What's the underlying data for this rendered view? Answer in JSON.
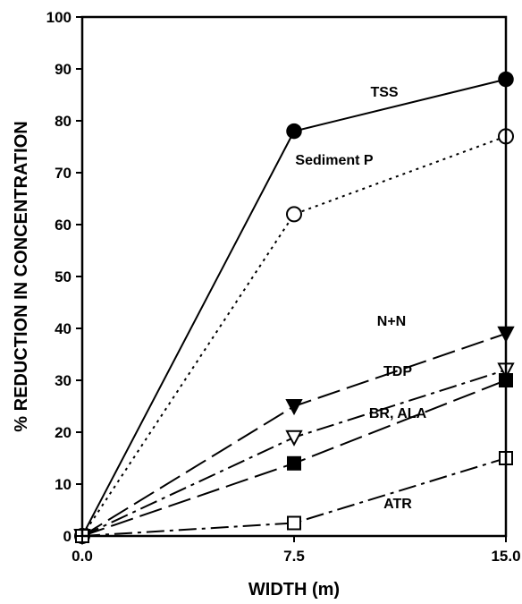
{
  "chart_data": {
    "type": "line",
    "xlabel": "WIDTH (m)",
    "ylabel": "% REDUCTION IN CONCENTRATION",
    "x": [
      0.0,
      7.5,
      15.0
    ],
    "xticks": [
      "0.0",
      "7.5",
      "15.0"
    ],
    "yticks": [
      "0",
      "10",
      "20",
      "30",
      "40",
      "50",
      "60",
      "70",
      "80",
      "90",
      "100"
    ],
    "xlim": [
      0,
      15
    ],
    "ylim": [
      0,
      100
    ],
    "grid": false,
    "series": [
      {
        "name": "TSS",
        "values": [
          0,
          78,
          88
        ],
        "marker": "circle-filled",
        "line": "solid"
      },
      {
        "name": "Sediment P",
        "values": [
          0,
          62,
          77
        ],
        "marker": "circle-open",
        "line": "dotted"
      },
      {
        "name": "N+N",
        "values": [
          0,
          25,
          39
        ],
        "marker": "triangle-down-filled",
        "line": "long-dash"
      },
      {
        "name": "TDP",
        "values": [
          0,
          19,
          32
        ],
        "marker": "triangle-down-open",
        "line": "dash-dot"
      },
      {
        "name": "BR, ALA",
        "values": [
          0,
          14,
          30
        ],
        "marker": "square-filled",
        "line": "long-dash"
      },
      {
        "name": "ATR",
        "values": [
          0,
          2.5,
          15
        ],
        "marker": "square-open",
        "line": "dash-dot"
      }
    ]
  }
}
